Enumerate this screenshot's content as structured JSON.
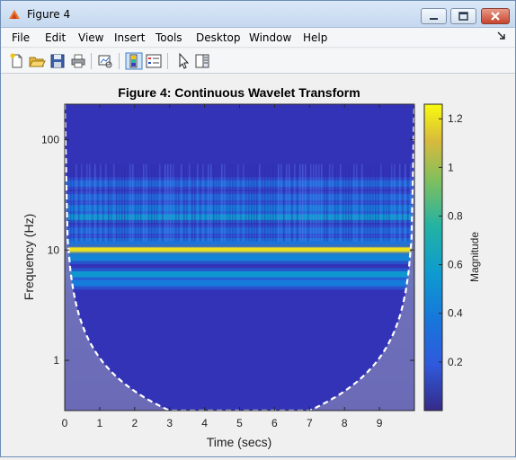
{
  "window": {
    "title": "Figure 4",
    "menus": [
      "File",
      "Edit",
      "View",
      "Insert",
      "Tools",
      "Desktop",
      "Window",
      "Help"
    ]
  },
  "toolbar": {
    "icons": [
      "new-figure-icon",
      "open-file-icon",
      "save-icon",
      "print-icon",
      "link-plot-icon",
      "colorbar-icon",
      "legend-icon",
      "pointer-icon",
      "property-editor-icon"
    ]
  },
  "chart_data": {
    "type": "heatmap",
    "title": "Figure 4: Continuous Wavelet Transform",
    "xlabel": "Time (secs)",
    "ylabel": "Frequency (Hz)",
    "x_ticks": [
      0,
      1,
      2,
      3,
      4,
      5,
      6,
      7,
      8,
      9
    ],
    "xlim": [
      0,
      10
    ],
    "y_ticks": [
      1,
      10,
      100
    ],
    "y_tick_labels": [
      "1",
      "10",
      "100"
    ],
    "y_scale": "log",
    "ylim": [
      0.35,
      210
    ],
    "colorbar": {
      "label": "Magnitude",
      "ticks": [
        0.2,
        0.4,
        0.6,
        0.8,
        1,
        1.2
      ],
      "tick_labels": [
        "0.2",
        "0.4",
        "0.6",
        "0.8",
        "1",
        "1.2"
      ],
      "range": [
        0,
        1.26
      ],
      "colormap": "parula"
    },
    "frequency_bands": [
      {
        "freq_hz": 10,
        "magnitude": 1.2
      },
      {
        "freq_hz": 8.5,
        "magnitude": 0.45
      },
      {
        "freq_hz": 6,
        "magnitude": 0.55
      },
      {
        "freq_hz": 5,
        "magnitude": 0.4
      },
      {
        "freq_hz": 12,
        "magnitude": 0.35
      },
      {
        "freq_hz": 15,
        "magnitude": 0.3
      },
      {
        "freq_hz": 20,
        "magnitude": 0.55
      },
      {
        "freq_hz": 24,
        "magnitude": 0.4
      },
      {
        "freq_hz": 30,
        "magnitude": 0.3
      },
      {
        "freq_hz": 40,
        "magnitude": 0.3
      }
    ],
    "cone_of_influence": "dashed white line, edge-affected region shaded",
    "grid": false
  }
}
